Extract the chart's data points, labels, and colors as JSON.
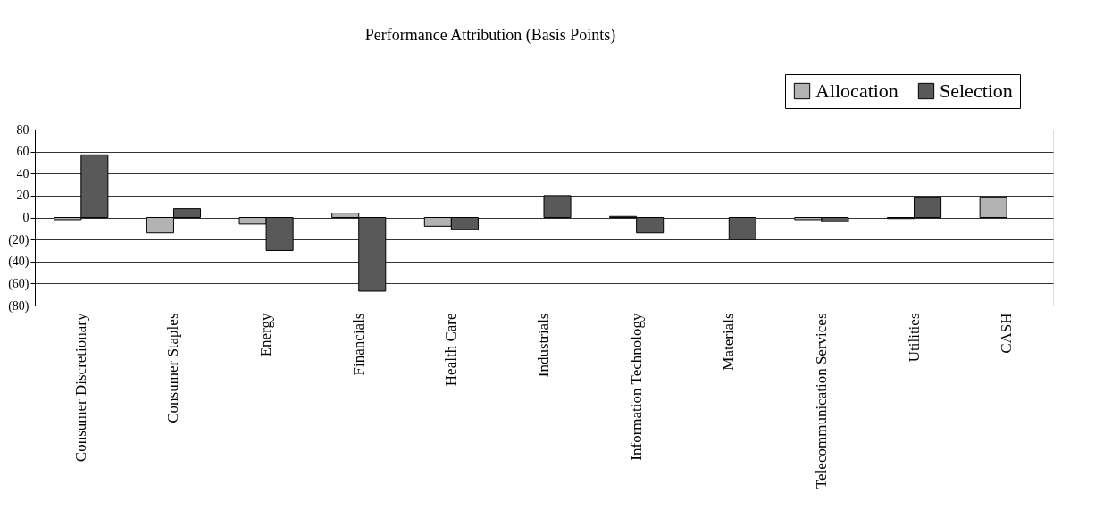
{
  "chart_data": {
    "type": "bar",
    "title": "Performance Attribution (Basis Points)",
    "categories": [
      "Consumer Discretionary",
      "Consumer Staples",
      "Energy",
      "Financials",
      "Health Care",
      "Industrials",
      "Information Technology",
      "Materials",
      "Telecommunication Services",
      "Utilities",
      "CASH"
    ],
    "series": [
      {
        "name": "Allocation",
        "color": "#b3b3b3",
        "values": [
          -2,
          -14,
          -6,
          4,
          -8,
          null,
          1,
          null,
          -2,
          -1,
          18
        ]
      },
      {
        "name": "Selection",
        "color": "#595959",
        "values": [
          57,
          8,
          -30,
          -67,
          -11,
          20,
          -14,
          -20,
          -4,
          18,
          null
        ]
      }
    ],
    "ylim": [
      -80,
      80
    ],
    "yticks": [
      {
        "value": -80,
        "label": "(80)"
      },
      {
        "value": -60,
        "label": "(60)"
      },
      {
        "value": -40,
        "label": "(40)"
      },
      {
        "value": -20,
        "label": "(20)"
      },
      0,
      20,
      40,
      60,
      80
    ],
    "grid": "y",
    "legend": "top right"
  }
}
